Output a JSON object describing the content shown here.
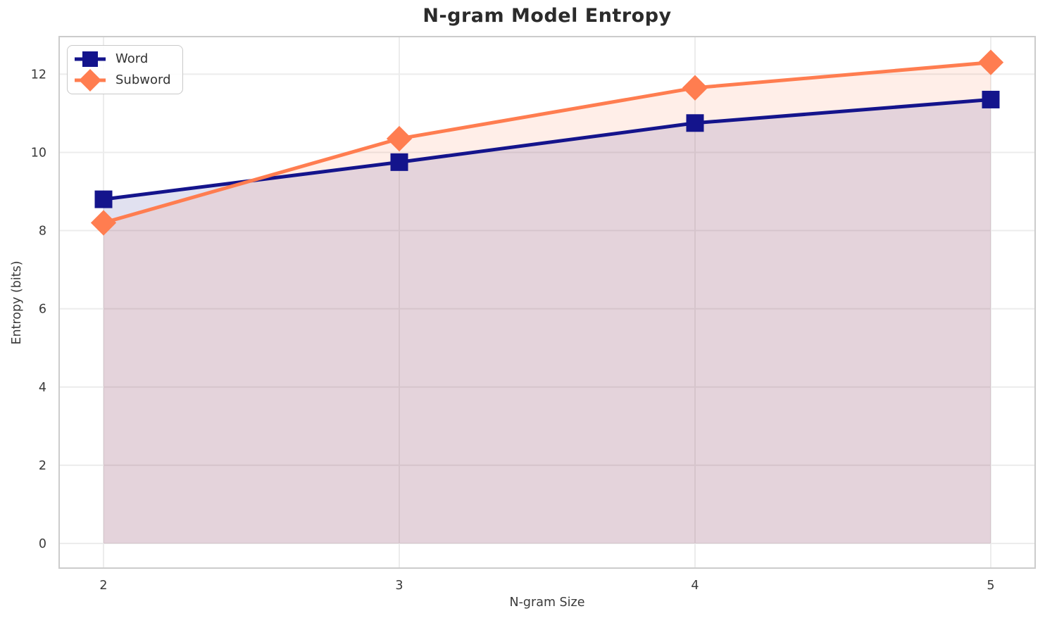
{
  "chart_data": {
    "type": "line",
    "title": "N-gram Model Entropy",
    "xlabel": "N-gram Size",
    "ylabel": "Entropy (bits)",
    "x": [
      2,
      3,
      4,
      5
    ],
    "series": [
      {
        "name": "Word",
        "values": [
          8.8,
          9.75,
          10.75,
          11.35
        ],
        "color": "#14148C",
        "marker": "square",
        "area_fill": true
      },
      {
        "name": "Subword",
        "values": [
          8.2,
          10.35,
          11.65,
          12.3
        ],
        "color": "#FF7D50",
        "marker": "diamond",
        "area_fill": true
      }
    ],
    "fill_opacity": 0.13,
    "fill_baseline": 0,
    "xlim": [
      1.85,
      5.15
    ],
    "ylim": [
      -0.63,
      12.96
    ],
    "xticks": [
      "2",
      "3",
      "4",
      "5"
    ],
    "xtick_values": [
      2,
      3,
      4,
      5
    ],
    "yticks": [
      "0",
      "2",
      "4",
      "6",
      "8",
      "10",
      "12"
    ],
    "ytick_values": [
      0,
      2,
      4,
      6,
      8,
      10,
      12
    ],
    "grid": true,
    "legend_position": "upper left"
  },
  "colors": {
    "grid": "#ececec",
    "spine": "#cccccc",
    "tick_text": "#3a3a3a",
    "title_text": "#2b2b2b",
    "background": "#ffffff"
  }
}
